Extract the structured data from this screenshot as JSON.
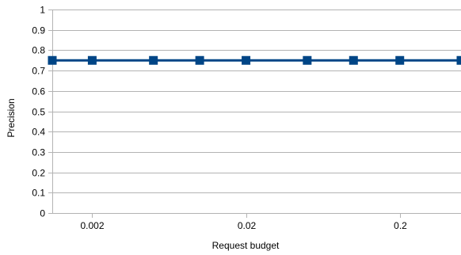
{
  "chart_data": {
    "type": "line",
    "title": "",
    "xlabel": "Request budget",
    "ylabel": "Precision",
    "x_scale": "log",
    "xlim": [
      0.0011,
      0.5
    ],
    "ylim": [
      0,
      1
    ],
    "x_ticks": [
      0.002,
      0.02,
      0.2
    ],
    "x_tick_labels": [
      "0.002",
      "0.02",
      "0.2"
    ],
    "y_ticks": [
      0,
      0.1,
      0.2,
      0.3,
      0.4,
      0.5,
      0.6,
      0.7,
      0.8,
      0.9,
      1
    ],
    "y_tick_labels": [
      "0",
      "0.1",
      "0.2",
      "0.3",
      "0.4",
      "0.5",
      "0.6",
      "0.7",
      "0.8",
      "0.9",
      "1"
    ],
    "grid": "horizontal",
    "legend": "none",
    "series": [
      {
        "x": [
          0.0011,
          0.002,
          0.005,
          0.01,
          0.02,
          0.05,
          0.1,
          0.2,
          0.5
        ],
        "y": [
          0.75,
          0.75,
          0.75,
          0.75,
          0.75,
          0.75,
          0.75,
          0.75,
          0.75
        ],
        "marker": "square",
        "color": "#004586"
      }
    ],
    "colors": {
      "series": "#004586",
      "grid": "#b3b3b3",
      "axis": "#b3b3b3"
    }
  }
}
